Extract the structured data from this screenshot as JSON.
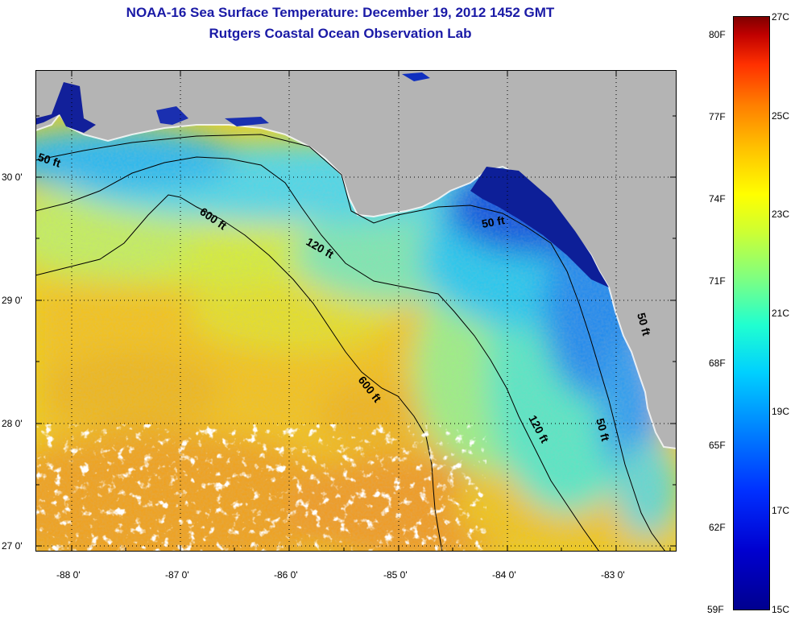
{
  "title": "NOAA-16 Sea Surface Temperature:  December 19, 2012 1452 GMT",
  "subtitle": "Rutgers Coastal Ocean Observation Lab",
  "map": {
    "lat_labels": [
      "30 0'",
      "29 0'",
      "28 0'",
      "27 0'"
    ],
    "lat_values": [
      30,
      29,
      28,
      27
    ],
    "lon_labels": [
      "-88 0'",
      "-87 0'",
      "-86 0'",
      "-85 0'",
      "-84 0'",
      "-83 0'"
    ],
    "lon_values": [
      -88,
      -87,
      -86,
      -85,
      -84,
      -83
    ],
    "lat_range": [
      26.98,
      30.86
    ],
    "lon_range": [
      -88.33,
      -82.45
    ],
    "contours": [
      {
        "label": "50 ft",
        "depth_ft": 50
      },
      {
        "label": "120 ft",
        "depth_ft": 120
      },
      {
        "label": "600 ft",
        "depth_ft": 600
      }
    ],
    "contour_labels": {
      "c50_west": "50 ft",
      "c50_mid": "50 ft",
      "c50_east": "50 ft",
      "c50_south": "50 ft",
      "c120_north": "120 ft",
      "c120_south": "120 ft",
      "c600_north": "600 ft",
      "c600_south": "600 ft"
    },
    "colors": {
      "land": "#b4b4b4",
      "cloud": "#ffffff",
      "grid": "#000000"
    }
  },
  "colorbar": {
    "fahrenheit_labels": [
      "80F",
      "77F",
      "74F",
      "71F",
      "68F",
      "65F",
      "62F",
      "59F"
    ],
    "celsius_labels": [
      "27C",
      "25C",
      "23C",
      "21C",
      "19C",
      "17C",
      "15C"
    ],
    "min_c": 15,
    "max_c": 27,
    "colors": [
      "#00008f",
      "#0000d0",
      "#0030ff",
      "#0080ff",
      "#00d0ff",
      "#20ffd0",
      "#80ff80",
      "#d0ff30",
      "#ffff00",
      "#ffc000",
      "#ff8000",
      "#ff3000",
      "#c00000",
      "#800000"
    ]
  }
}
